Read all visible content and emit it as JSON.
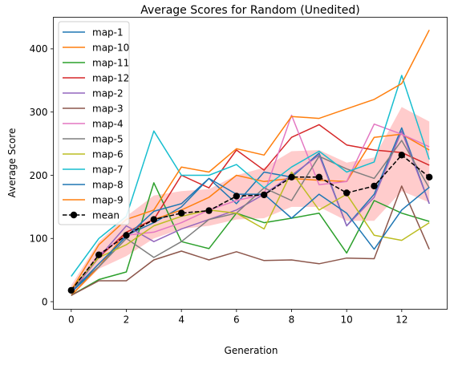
{
  "chart_data": {
    "type": "line",
    "title": "Average Scores for Random (Unedited)",
    "xlabel": "Generation",
    "ylabel": "Average Score",
    "x": [
      0,
      1,
      2,
      3,
      4,
      5,
      6,
      7,
      8,
      9,
      10,
      11,
      12,
      13
    ],
    "xlim": [
      -0.65,
      13.65
    ],
    "ylim": [
      -12,
      450
    ],
    "xticks": [
      0,
      2,
      4,
      6,
      8,
      10,
      12
    ],
    "yticks": [
      0,
      100,
      200,
      300,
      400
    ],
    "legend_position": "top-left",
    "grid": false,
    "series": [
      {
        "name": "map-1",
        "color": "#1f77b4",
        "values": [
          15,
          55,
          105,
          125,
          150,
          195,
          155,
          205,
          197,
          235,
          120,
          170,
          275,
          155
        ]
      },
      {
        "name": "map-10",
        "color": "#ff7f0e",
        "values": [
          10,
          55,
          110,
          130,
          145,
          165,
          200,
          190,
          195,
          192,
          190,
          260,
          265,
          240
        ]
      },
      {
        "name": "map-11",
        "color": "#2ca02c",
        "values": [
          10,
          35,
          47,
          188,
          95,
          84,
          140,
          125,
          132,
          140,
          77,
          160,
          140,
          127
        ]
      },
      {
        "name": "map-12",
        "color": "#d62728",
        "values": [
          15,
          70,
          110,
          130,
          200,
          180,
          240,
          208,
          260,
          280,
          248,
          240,
          236,
          216
        ]
      },
      {
        "name": "map-2",
        "color": "#9467bd",
        "values": [
          15,
          70,
          120,
          95,
          115,
          130,
          145,
          170,
          200,
          232,
          120,
          165,
          270,
          155
        ]
      },
      {
        "name": "map-3",
        "color": "#8c564b",
        "values": [
          10,
          33,
          33,
          66,
          80,
          66,
          79,
          65,
          66,
          60,
          69,
          68,
          183,
          83
        ]
      },
      {
        "name": "map-4",
        "color": "#e377c2",
        "values": [
          15,
          75,
          105,
          110,
          125,
          145,
          160,
          170,
          295,
          185,
          190,
          281,
          265,
          245
        ]
      },
      {
        "name": "map-5",
        "color": "#7f7f7f",
        "values": [
          20,
          55,
          100,
          70,
          95,
          130,
          140,
          180,
          160,
          230,
          210,
          195,
          255,
          180
        ]
      },
      {
        "name": "map-6",
        "color": "#bcbd22",
        "values": [
          20,
          70,
          90,
          120,
          135,
          145,
          140,
          115,
          205,
          145,
          170,
          105,
          97,
          125
        ]
      },
      {
        "name": "map-7",
        "color": "#17becf",
        "values": [
          40,
          100,
          135,
          270,
          200,
          200,
          217,
          180,
          213,
          238,
          205,
          221,
          358,
          225
        ]
      },
      {
        "name": "map-8",
        "color": "#1f77b4",
        "values": [
          15,
          60,
          103,
          143,
          155,
          195,
          170,
          170,
          132,
          170,
          140,
          83,
          145,
          181
        ]
      },
      {
        "name": "map-9",
        "color": "#ff7f0e",
        "values": [
          18,
          90,
          130,
          145,
          213,
          205,
          242,
          232,
          293,
          290,
          305,
          320,
          345,
          430
        ]
      },
      {
        "name": "mean",
        "color": "#000000",
        "dashed": true,
        "marker": true,
        "values": [
          18,
          74,
          105,
          130,
          140,
          144,
          167,
          169,
          197,
          197,
          172,
          183,
          232,
          197
        ]
      }
    ],
    "band": {
      "color": "#ff9a9a",
      "lower": [
        8,
        52,
        72,
        100,
        115,
        120,
        130,
        132,
        150,
        150,
        128,
        128,
        175,
        157
      ],
      "upper": [
        26,
        95,
        135,
        168,
        175,
        178,
        200,
        212,
        238,
        240,
        220,
        228,
        308,
        285
      ]
    }
  }
}
